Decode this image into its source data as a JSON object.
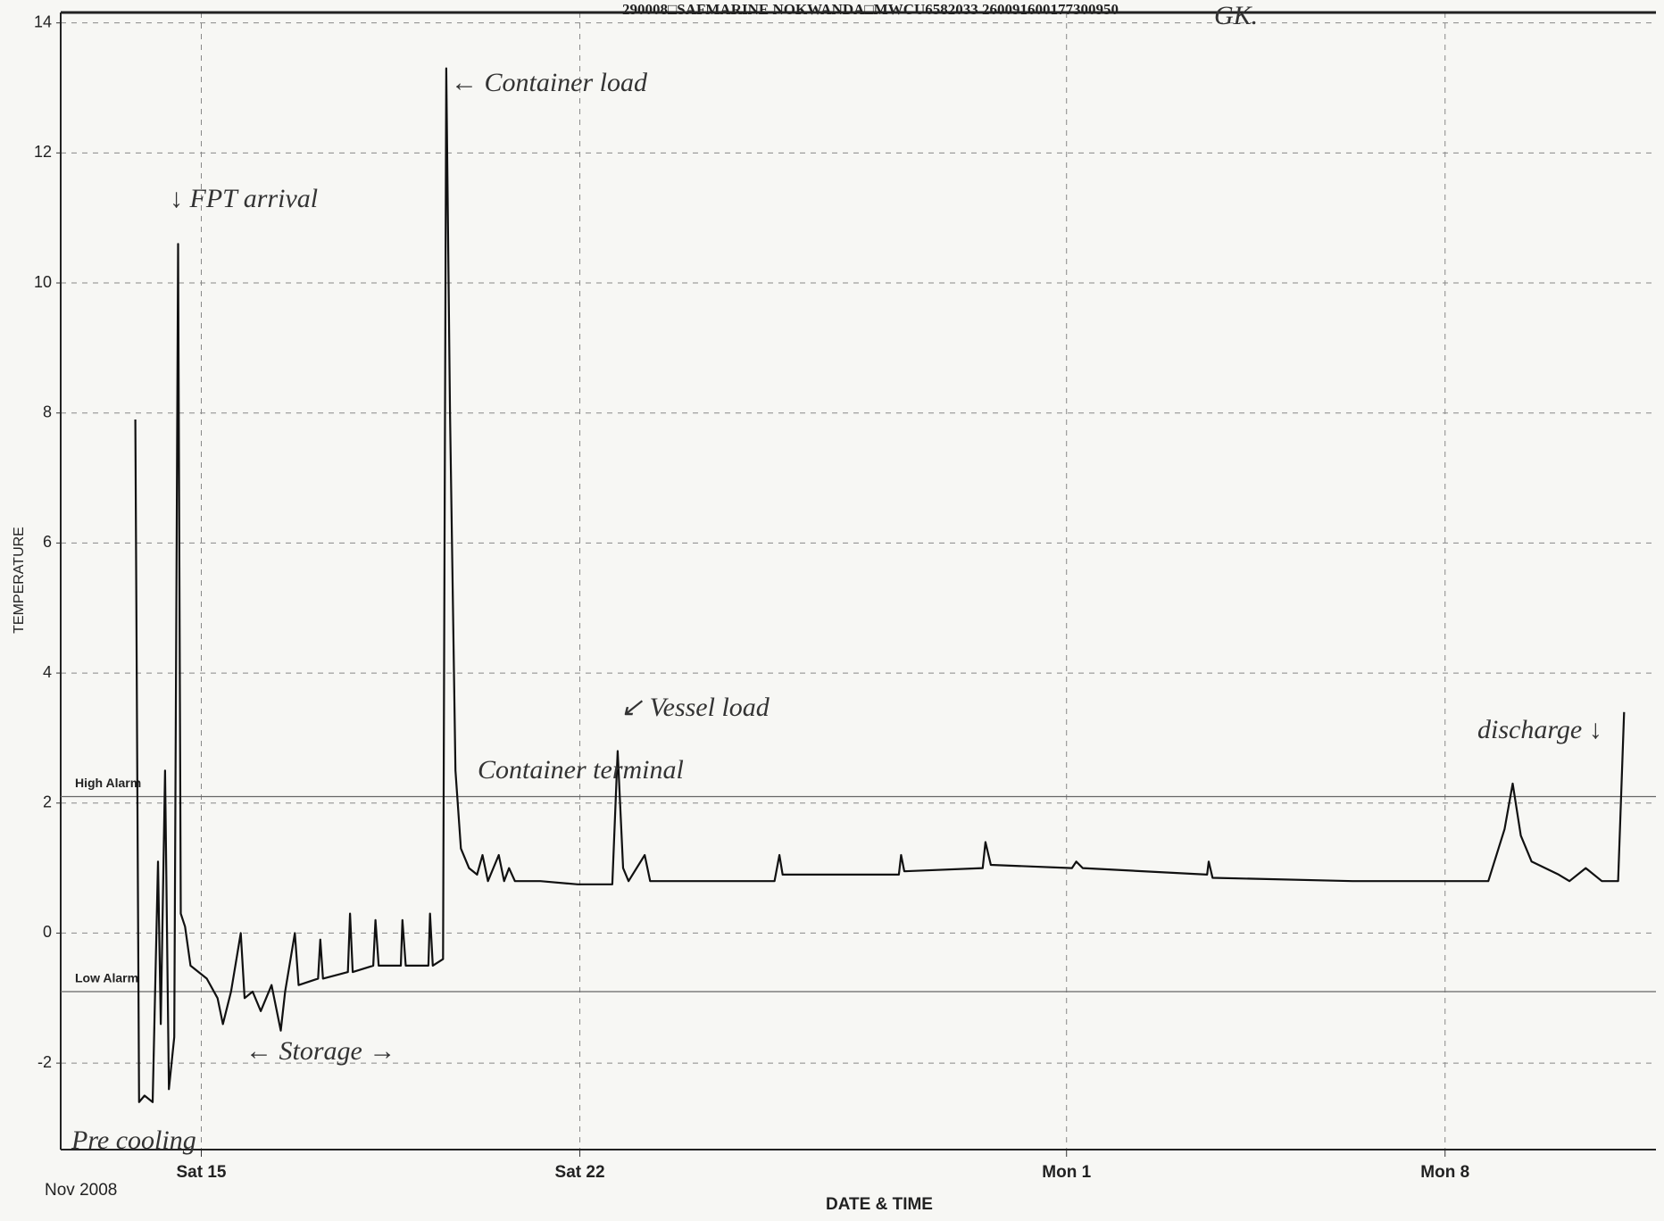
{
  "chart_data": {
    "type": "line",
    "title": "290008□SAFMARINE NOKWANDA□MWCU6582033 260091600177300950",
    "x_label": "DATE & TIME",
    "y_label": "TEMPERATURE",
    "x_origin_label": "Nov 2008",
    "xlim": [
      12.4,
      41.9
    ],
    "xticks": [
      {
        "value": 15,
        "label": "Sat 15"
      },
      {
        "value": 22,
        "label": "Sat 22"
      },
      {
        "value": 31,
        "label": "Mon 1"
      },
      {
        "value": 38,
        "label": "Mon 8"
      }
    ],
    "ylim": [
      -3.33,
      14.16
    ],
    "yticks": [
      -2,
      0,
      2,
      4,
      6,
      8,
      10,
      12,
      14
    ],
    "grid": true,
    "alarms": [
      {
        "label": "High Alarm",
        "value": 2.1
      },
      {
        "label": "Low Alarm",
        "value": -0.9
      }
    ],
    "annotations": [
      "← Container load",
      "↓ FPT arrival",
      "↙ Vessel load",
      "Container terminal",
      "discharge ↓",
      "← Storage →",
      "Pre cooling",
      "GK."
    ],
    "series": [
      {
        "name": "Temperature",
        "color": "#111111",
        "x": [
          13.78,
          13.85,
          13.95,
          14.1,
          14.2,
          14.25,
          14.33,
          14.4,
          14.5,
          14.57,
          14.62,
          14.7,
          14.8,
          15.1,
          15.3,
          15.4,
          15.55,
          15.73,
          15.8,
          15.95,
          16.1,
          16.3,
          16.47,
          16.55,
          16.73,
          16.8,
          17.16,
          17.2,
          17.25,
          17.71,
          17.75,
          17.8,
          18.18,
          18.22,
          18.28,
          18.69,
          18.72,
          18.78,
          19.2,
          19.23,
          19.28,
          19.47,
          19.53,
          19.6,
          19.7,
          19.8,
          19.95,
          20.1,
          20.2,
          20.3,
          20.5,
          20.6,
          20.69,
          20.8,
          21.27,
          21.96,
          22.6,
          22.7,
          22.8,
          22.9,
          23.2,
          23.3,
          24.12,
          25.6,
          25.69,
          25.75,
          27.9,
          27.94,
          28.0,
          29.45,
          29.5,
          29.6,
          31.1,
          31.18,
          31.3,
          33.6,
          33.63,
          33.7,
          36.29,
          38.8,
          39.1,
          39.25,
          39.4,
          39.6,
          40.1,
          40.3,
          40.6,
          40.9,
          41.2,
          41.31
        ],
        "values": [
          7.9,
          -2.6,
          -2.5,
          -2.6,
          1.1,
          -1.4,
          2.5,
          -2.4,
          -1.6,
          10.6,
          0.3,
          0.1,
          -0.5,
          -0.7,
          -1.0,
          -1.4,
          -0.9,
          0.0,
          -1.0,
          -0.9,
          -1.2,
          -0.8,
          -1.5,
          -0.9,
          0.0,
          -0.8,
          -0.7,
          -0.1,
          -0.7,
          -0.6,
          0.3,
          -0.6,
          -0.5,
          0.2,
          -0.5,
          -0.5,
          0.2,
          -0.5,
          -0.5,
          0.3,
          -0.5,
          -0.4,
          13.3,
          8.0,
          2.5,
          1.3,
          1.0,
          0.9,
          1.2,
          0.8,
          1.2,
          0.8,
          1.0,
          0.8,
          0.8,
          0.75,
          0.75,
          2.8,
          1.0,
          0.8,
          1.2,
          0.8,
          0.8,
          0.8,
          1.2,
          0.9,
          0.9,
          1.2,
          0.95,
          1.0,
          1.4,
          1.05,
          1.0,
          1.1,
          1.0,
          0.9,
          1.1,
          0.85,
          0.8,
          0.8,
          1.6,
          2.3,
          1.5,
          1.1,
          0.9,
          0.8,
          1.0,
          0.8,
          0.8,
          3.4
        ]
      }
    ]
  }
}
